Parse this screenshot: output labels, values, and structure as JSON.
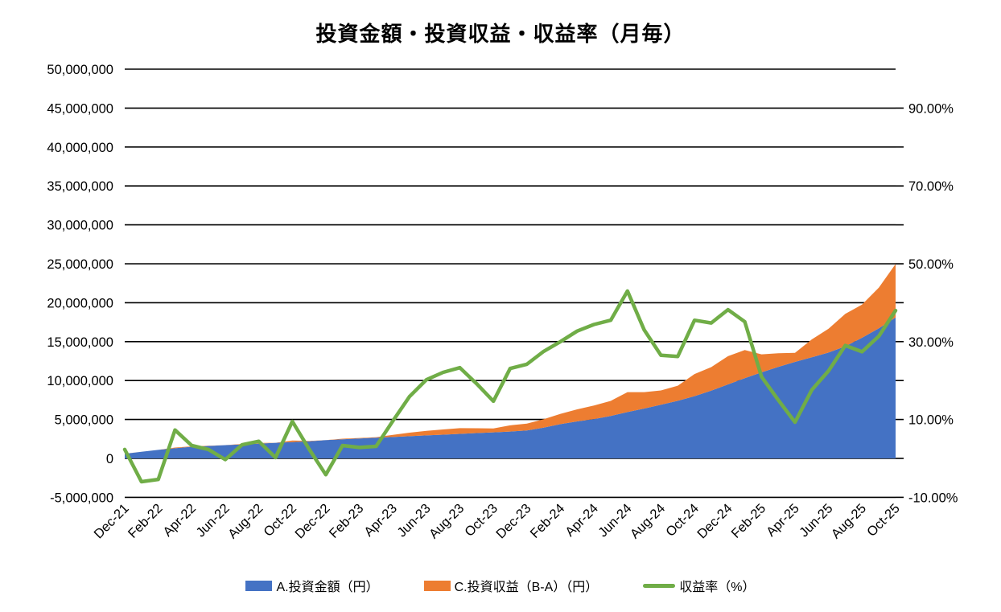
{
  "chart_data": {
    "type": "combo-stacked-area-line",
    "title": "投資金額・投資収益・収益率（月毎）",
    "categories": [
      "Dec-21",
      "Jan-22",
      "Feb-22",
      "Mar-22",
      "Apr-22",
      "May-22",
      "Jun-22",
      "Jul-22",
      "Aug-22",
      "Sep-22",
      "Oct-22",
      "Nov-22",
      "Dec-22",
      "Jan-23",
      "Feb-23",
      "Mar-23",
      "Apr-23",
      "May-23",
      "Jun-23",
      "Jul-23",
      "Aug-23",
      "Sep-23",
      "Oct-23",
      "Nov-23",
      "Dec-23",
      "Jan-24",
      "Feb-24",
      "Mar-24",
      "Apr-24",
      "May-24",
      "Jun-24",
      "Jul-24",
      "Aug-24",
      "Sep-24",
      "Oct-24",
      "Nov-24",
      "Dec-24",
      "Jan-25",
      "Feb-25",
      "Mar-25",
      "Apr-25",
      "May-25",
      "Jun-25",
      "Jul-25",
      "Aug-25",
      "Sep-25",
      "Oct-25"
    ],
    "x_tick_labels": [
      "Dec-21",
      "Feb-22",
      "Apr-22",
      "Jun-22",
      "Aug-22",
      "Oct-22",
      "Dec-22",
      "Feb-23",
      "Apr-23",
      "Jun-23",
      "Aug-23",
      "Oct-23",
      "Dec-23",
      "Feb-24",
      "Apr-24",
      "Jun-24",
      "Aug-24",
      "Oct-24",
      "Dec-24",
      "Feb-25",
      "Apr-25",
      "Jun-25",
      "Aug-25",
      "Oct-25"
    ],
    "series": [
      {
        "name": "A.投資金額（円）",
        "type": "area",
        "axis": "left",
        "color": "#4472C4",
        "values": [
          600000,
          850000,
          1100000,
          1300000,
          1500000,
          1600000,
          1700000,
          1800000,
          1900000,
          2000000,
          2100000,
          2200000,
          2350000,
          2450000,
          2550000,
          2650000,
          2750000,
          2850000,
          2950000,
          3050000,
          3150000,
          3250000,
          3350000,
          3450000,
          3600000,
          3950000,
          4400000,
          4750000,
          5050000,
          5450000,
          5950000,
          6400000,
          6900000,
          7400000,
          8000000,
          8700000,
          9500000,
          10300000,
          11050000,
          11750000,
          12400000,
          13000000,
          13600000,
          14400000,
          15500000,
          16700000,
          18100000
        ]
      },
      {
        "name": "C.投資収益（B-A）（円）",
        "type": "area",
        "stacked_on": "A.投資金額（円）",
        "axis": "left",
        "color": "#ED7D31",
        "values": [
          14000,
          -51000,
          -59000,
          95000,
          50000,
          37000,
          -5000,
          63000,
          84000,
          4000,
          200000,
          53000,
          -99000,
          81000,
          71000,
          82000,
          264000,
          453000,
          596000,
          674000,
          734000,
          624000,
          492000,
          797000,
          871000,
          1086000,
          1320000,
          1553000,
          1737000,
          1935000,
          2559000,
          2112000,
          1829000,
          1939000,
          2840000,
          3028000,
          3629000,
          3615000,
          2321000,
          1763000,
          1153000,
          2288000,
          3060000,
          4176000,
          4247000,
          5244000,
          6878000
        ]
      },
      {
        "name": "収益率（%）",
        "type": "line",
        "axis": "right",
        "color": "#70AD47",
        "values": [
          2.3,
          -6.0,
          -5.4,
          7.3,
          3.3,
          2.3,
          -0.3,
          3.5,
          4.4,
          0.2,
          9.5,
          2.4,
          -4.2,
          3.3,
          2.8,
          3.1,
          9.6,
          15.9,
          20.2,
          22.1,
          23.3,
          19.2,
          14.7,
          23.1,
          24.2,
          27.5,
          30.0,
          32.7,
          34.4,
          35.5,
          43.0,
          33.0,
          26.5,
          26.2,
          35.5,
          34.8,
          38.2,
          35.1,
          21.0,
          15.0,
          9.3,
          17.6,
          22.5,
          29.0,
          27.4,
          31.4,
          38.0
        ]
      }
    ],
    "left_axis": {
      "min": -5000000,
      "max": 50000000,
      "step": 5000000,
      "labels": [
        "50,000,000",
        "45,000,000",
        "40,000,000",
        "35,000,000",
        "30,000,000",
        "25,000,000",
        "20,000,000",
        "15,000,000",
        "10,000,000",
        "5,000,000",
        "0",
        "-5,000,000"
      ]
    },
    "right_axis": {
      "min": -10,
      "max": 100,
      "tick_step": 10,
      "label_step": 20,
      "labels": [
        "90.00%",
        "70.00%",
        "50.00%",
        "30.00%",
        "10.00%",
        "-10.00%"
      ],
      "label_values": [
        90,
        70,
        50,
        30,
        10,
        -10
      ]
    },
    "grid": true,
    "grid_color": "#000000",
    "legend_position": "bottom",
    "background": "#ffffff"
  }
}
